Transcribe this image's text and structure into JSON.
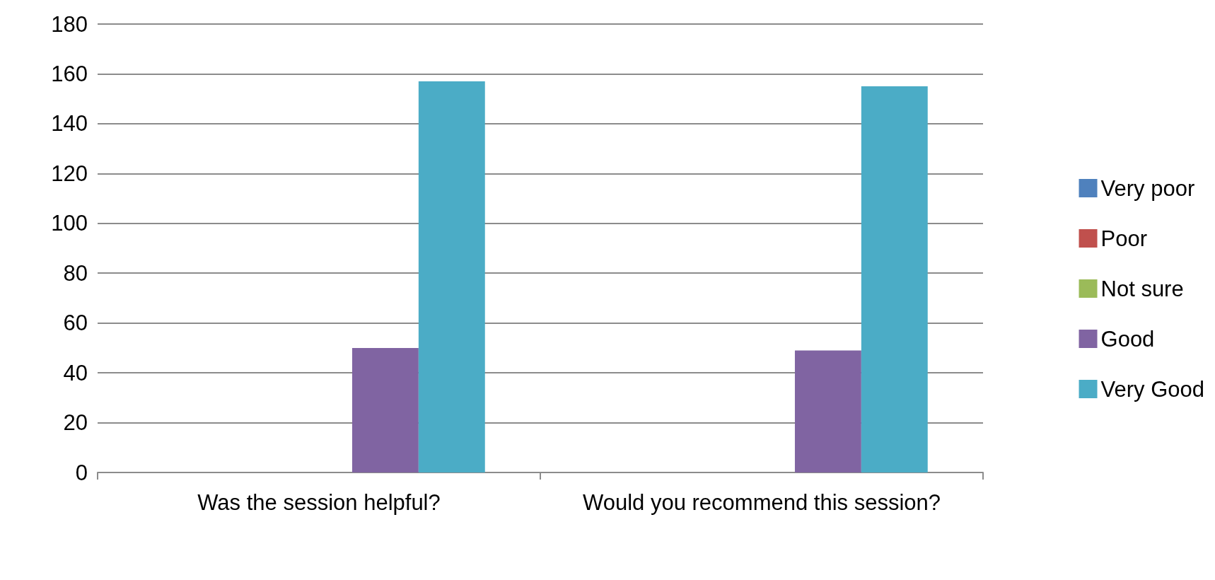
{
  "chart_data": {
    "type": "bar",
    "categories": [
      "Was the session helpful?",
      "Would you recommend this session?"
    ],
    "series": [
      {
        "name": "Very poor",
        "color": "#4f81bd",
        "values": [
          0,
          0
        ]
      },
      {
        "name": "Poor",
        "color": "#c0504d",
        "values": [
          0,
          0
        ]
      },
      {
        "name": "Not sure",
        "color": "#9bbb59",
        "values": [
          0,
          0
        ]
      },
      {
        "name": "Good",
        "color": "#8064a2",
        "values": [
          50,
          49
        ]
      },
      {
        "name": "Very Good",
        "color": "#4bacc6",
        "values": [
          157,
          155
        ]
      }
    ],
    "ylim": [
      0,
      180
    ],
    "yticks": [
      0,
      20,
      40,
      60,
      80,
      100,
      120,
      140,
      160,
      180
    ],
    "grid": "y",
    "legend": "right"
  }
}
